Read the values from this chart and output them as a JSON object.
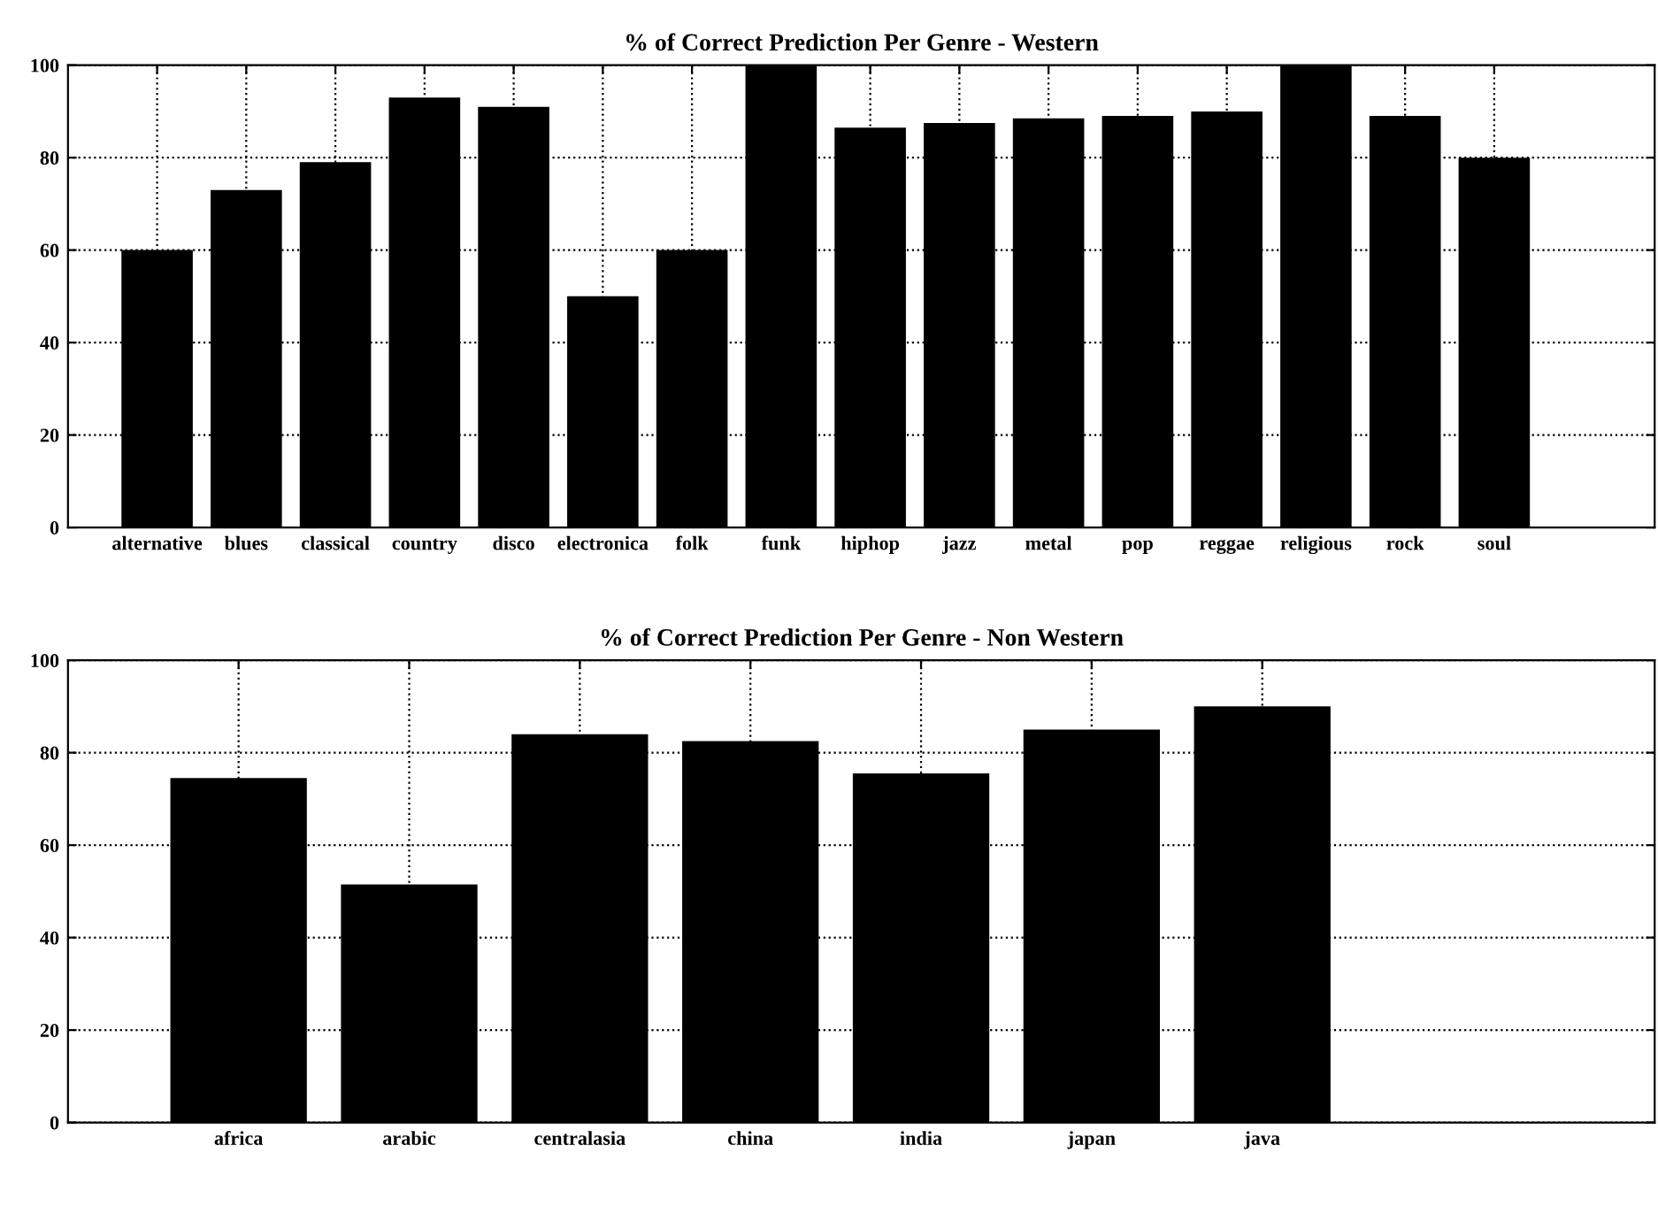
{
  "chart_data": [
    {
      "type": "bar",
      "title": "% of Correct Prediction Per Genre - Western",
      "categories": [
        "alternative",
        "blues",
        "classical",
        "country",
        "disco",
        "electronica",
        "folk",
        "funk",
        "hiphop",
        "jazz",
        "metal",
        "pop",
        "reggae",
        "religious",
        "rock",
        "soul"
      ],
      "values": [
        60,
        73,
        79,
        93,
        91,
        50,
        60,
        100,
        86.5,
        87.5,
        88.5,
        89,
        90,
        100,
        89,
        80
      ],
      "color": "#000000",
      "ylim": [
        0,
        100
      ],
      "yticks": [
        0,
        20,
        40,
        60,
        80,
        100
      ],
      "grid": true
    },
    {
      "type": "bar",
      "title": "% of Correct Prediction Per Genre - Non Western",
      "categories": [
        "africa",
        "arabic",
        "centralasia",
        "china",
        "india",
        "japan",
        "java"
      ],
      "values": [
        74.5,
        51.5,
        84,
        82.5,
        75.5,
        85,
        90
      ],
      "color": "#000000",
      "ylim": [
        0,
        100
      ],
      "yticks": [
        0,
        20,
        40,
        60,
        80,
        100
      ],
      "grid": true
    }
  ]
}
